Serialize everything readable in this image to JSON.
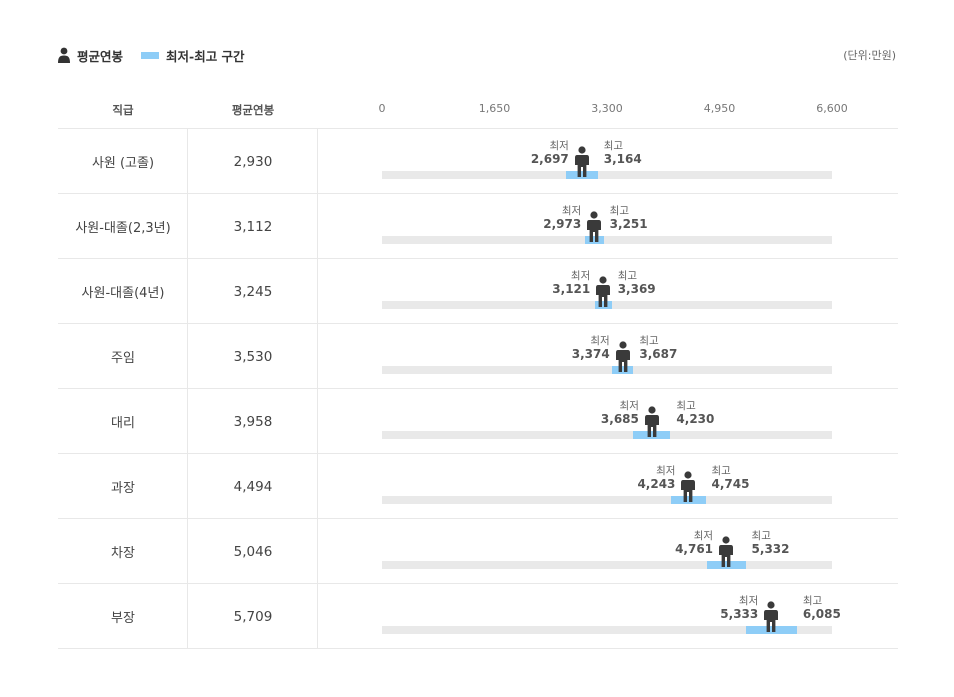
{
  "legend": {
    "avg_label": "평균연봉",
    "range_label": "최저-최고 구간"
  },
  "unit_label": "(단위:만원)",
  "headers": {
    "rank": "직급",
    "avg": "평균연봉"
  },
  "colors": {
    "range": "#8ecdf7",
    "track": "#e9e9e9",
    "person": "#3a3a3a"
  },
  "chart_data": {
    "type": "bar",
    "axis_ticks": [
      "0",
      "1,650",
      "3,300",
      "4,950",
      "6,600"
    ],
    "xlim": [
      0,
      6600
    ],
    "min_label": "최저",
    "max_label": "최고",
    "rows": [
      {
        "rank": "사원 (고졸)",
        "avg": 2930,
        "avg_text": "2,930",
        "min": 2697,
        "min_text": "2,697",
        "max": 3164,
        "max_text": "3,164"
      },
      {
        "rank": "사원-대졸(2,3년)",
        "avg": 3112,
        "avg_text": "3,112",
        "min": 2973,
        "min_text": "2,973",
        "max": 3251,
        "max_text": "3,251"
      },
      {
        "rank": "사원-대졸(4년)",
        "avg": 3245,
        "avg_text": "3,245",
        "min": 3121,
        "min_text": "3,121",
        "max": 3369,
        "max_text": "3,369"
      },
      {
        "rank": "주임",
        "avg": 3530,
        "avg_text": "3,530",
        "min": 3374,
        "min_text": "3,374",
        "max": 3687,
        "max_text": "3,687"
      },
      {
        "rank": "대리",
        "avg": 3958,
        "avg_text": "3,958",
        "min": 3685,
        "min_text": "3,685",
        "max": 4230,
        "max_text": "4,230"
      },
      {
        "rank": "과장",
        "avg": 4494,
        "avg_text": "4,494",
        "min": 4243,
        "min_text": "4,243",
        "max": 4745,
        "max_text": "4,745"
      },
      {
        "rank": "차장",
        "avg": 5046,
        "avg_text": "5,046",
        "min": 4761,
        "min_text": "4,761",
        "max": 5332,
        "max_text": "5,332"
      },
      {
        "rank": "부장",
        "avg": 5709,
        "avg_text": "5,709",
        "min": 5333,
        "min_text": "5,333",
        "max": 6085,
        "max_text": "6,085"
      }
    ]
  }
}
